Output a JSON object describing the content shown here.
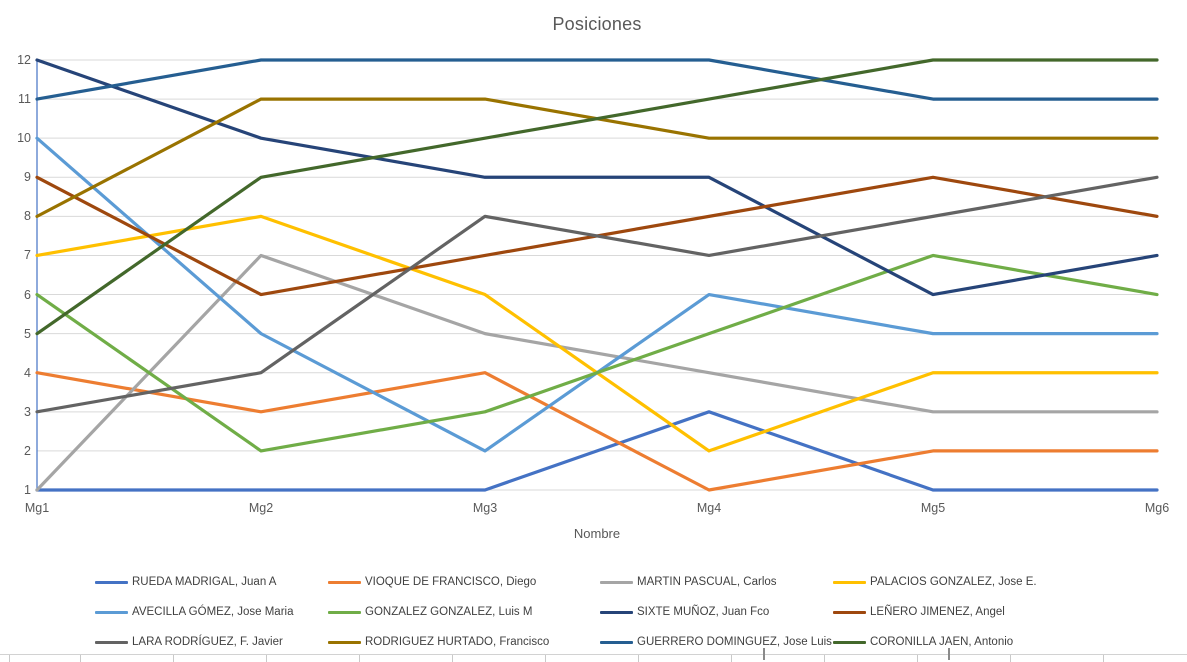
{
  "chart_data": {
    "type": "line",
    "title": "Posiciones",
    "xlabel": "Nombre",
    "ylabel": "",
    "categories": [
      "Mg1",
      "Mg2",
      "Mg3",
      "Mg4",
      "Mg5",
      "Mg6"
    ],
    "y_ticks": [
      1,
      2,
      3,
      4,
      5,
      6,
      7,
      8,
      9,
      10,
      11,
      12
    ],
    "ylim": [
      1,
      12
    ],
    "grid": true,
    "legend_position": "bottom",
    "axis_line_color": "#4472C4",
    "gridline_color": "#D9D9D9",
    "label_color": "#595959",
    "legend_text_color": "#404040",
    "series": [
      {
        "name": "RUEDA MADRIGAL, Juan A",
        "color": "#4472C4",
        "values": [
          1,
          1,
          1,
          3,
          1,
          1
        ]
      },
      {
        "name": "VIOQUE DE FRANCISCO, Diego",
        "color": "#ED7D31",
        "values": [
          4,
          3,
          4,
          1,
          2,
          2
        ]
      },
      {
        "name": "MARTIN PASCUAL, Carlos",
        "color": "#A5A5A5",
        "values": [
          1,
          7,
          5,
          4,
          3,
          3
        ]
      },
      {
        "name": "PALACIOS GONZALEZ, Jose E.",
        "color": "#FFC000",
        "values": [
          7,
          8,
          6,
          2,
          4,
          4
        ]
      },
      {
        "name": "AVECILLA GÓMEZ, Jose Maria",
        "color": "#5B9BD5",
        "values": [
          10,
          5,
          2,
          6,
          5,
          5
        ]
      },
      {
        "name": "GONZALEZ GONZALEZ, Luis M",
        "color": "#70AD47",
        "values": [
          6,
          2,
          3,
          5,
          7,
          6
        ]
      },
      {
        "name": "SIXTE MUÑOZ, Juan Fco",
        "color": "#264478",
        "values": [
          12,
          10,
          9,
          9,
          6,
          7
        ]
      },
      {
        "name": "LEÑERO JIMENEZ, Angel",
        "color": "#9E480E",
        "values": [
          9,
          6,
          7,
          8,
          9,
          8
        ]
      },
      {
        "name": "LARA RODRÍGUEZ, F. Javier",
        "color": "#636363",
        "values": [
          3,
          4,
          8,
          7,
          8,
          9
        ]
      },
      {
        "name": "RODRIGUEZ HURTADO, Francisco",
        "color": "#997300",
        "values": [
          8,
          11,
          11,
          10,
          10,
          10
        ]
      },
      {
        "name": "GUERRERO DOMINGUEZ, Jose Luis",
        "color": "#255E91",
        "values": [
          11,
          12,
          12,
          12,
          11,
          11
        ]
      },
      {
        "name": "CORONILLA JAEN, Antonio",
        "color": "#43682B",
        "values": [
          5,
          9,
          10,
          11,
          12,
          12
        ]
      }
    ]
  }
}
